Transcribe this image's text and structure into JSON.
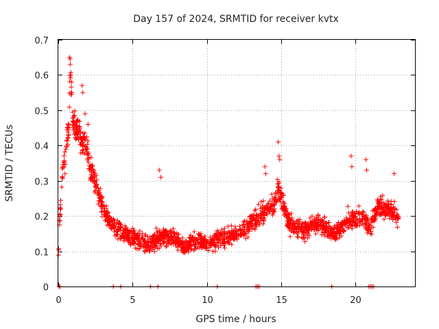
{
  "chart_data": {
    "type": "scatter",
    "title": "Day 157 of 2024, SRMTID for receiver kvtx",
    "xlabel": "GPS time / hours",
    "ylabel": "SRMTID / TECUs",
    "xlim": [
      0,
      24
    ],
    "ylim": [
      0,
      0.7
    ],
    "xticks": [
      0,
      5,
      10,
      15,
      20
    ],
    "yticks": [
      0,
      0.1,
      0.2,
      0.3,
      0.4,
      0.5,
      0.6,
      0.7
    ],
    "grid": true,
    "marker": "+",
    "series": [
      {
        "name": "SRMTID",
        "color": "#ff0000",
        "profile": [
          [
            0.0,
            0.08
          ],
          [
            0.1,
            0.2
          ],
          [
            0.3,
            0.33
          ],
          [
            0.5,
            0.38
          ],
          [
            0.7,
            0.45
          ],
          [
            0.8,
            0.6
          ],
          [
            1.0,
            0.47
          ],
          [
            1.3,
            0.44
          ],
          [
            1.6,
            0.42
          ],
          [
            1.9,
            0.4
          ],
          [
            2.2,
            0.33
          ],
          [
            2.6,
            0.28
          ],
          [
            3.0,
            0.22
          ],
          [
            3.5,
            0.18
          ],
          [
            4.0,
            0.16
          ],
          [
            4.5,
            0.15
          ],
          [
            5.0,
            0.14
          ],
          [
            5.5,
            0.13
          ],
          [
            6.0,
            0.12
          ],
          [
            6.5,
            0.13
          ],
          [
            7.0,
            0.14
          ],
          [
            7.5,
            0.14
          ],
          [
            8.0,
            0.13
          ],
          [
            8.5,
            0.11
          ],
          [
            9.0,
            0.13
          ],
          [
            9.5,
            0.13
          ],
          [
            10.0,
            0.12
          ],
          [
            10.5,
            0.13
          ],
          [
            11.0,
            0.14
          ],
          [
            11.5,
            0.14
          ],
          [
            12.0,
            0.15
          ],
          [
            12.5,
            0.16
          ],
          [
            13.0,
            0.18
          ],
          [
            13.5,
            0.2
          ],
          [
            14.0,
            0.22
          ],
          [
            14.5,
            0.23
          ],
          [
            14.8,
            0.28
          ],
          [
            15.0,
            0.25
          ],
          [
            15.5,
            0.18
          ],
          [
            16.0,
            0.17
          ],
          [
            16.5,
            0.16
          ],
          [
            17.0,
            0.17
          ],
          [
            17.5,
            0.18
          ],
          [
            18.0,
            0.17
          ],
          [
            18.5,
            0.15
          ],
          [
            19.0,
            0.16
          ],
          [
            19.5,
            0.19
          ],
          [
            20.0,
            0.19
          ],
          [
            20.5,
            0.2
          ],
          [
            21.0,
            0.16
          ],
          [
            21.5,
            0.23
          ],
          [
            22.0,
            0.22
          ],
          [
            22.5,
            0.21
          ],
          [
            22.9,
            0.2
          ]
        ],
        "spread": 0.045,
        "time_range": [
          0.0,
          22.9
        ],
        "spikes": [
          {
            "x": 0.75,
            "y": 0.65
          },
          {
            "x": 0.8,
            "y": 0.63
          },
          {
            "x": 0.85,
            "y": 0.6
          },
          {
            "x": 0.9,
            "y": 0.58
          },
          {
            "x": 1.6,
            "y": 0.57
          },
          {
            "x": 1.65,
            "y": 0.55
          },
          {
            "x": 1.8,
            "y": 0.49
          },
          {
            "x": 2.0,
            "y": 0.46
          },
          {
            "x": 6.8,
            "y": 0.33
          },
          {
            "x": 6.9,
            "y": 0.31
          },
          {
            "x": 14.8,
            "y": 0.41
          },
          {
            "x": 14.85,
            "y": 0.37
          },
          {
            "x": 14.9,
            "y": 0.36
          },
          {
            "x": 19.7,
            "y": 0.37
          },
          {
            "x": 19.75,
            "y": 0.34
          },
          {
            "x": 20.7,
            "y": 0.36
          },
          {
            "x": 20.75,
            "y": 0.33
          },
          {
            "x": 13.9,
            "y": 0.34
          },
          {
            "x": 13.95,
            "y": 0.32
          },
          {
            "x": 22.6,
            "y": 0.32
          }
        ],
        "zero_points": [
          0.05,
          0.1,
          3.7,
          4.2,
          6.2,
          6.7,
          10.7,
          13.3,
          13.4,
          13.5,
          18.4,
          20.9,
          21.0,
          21.1,
          21.2
        ]
      }
    ]
  }
}
